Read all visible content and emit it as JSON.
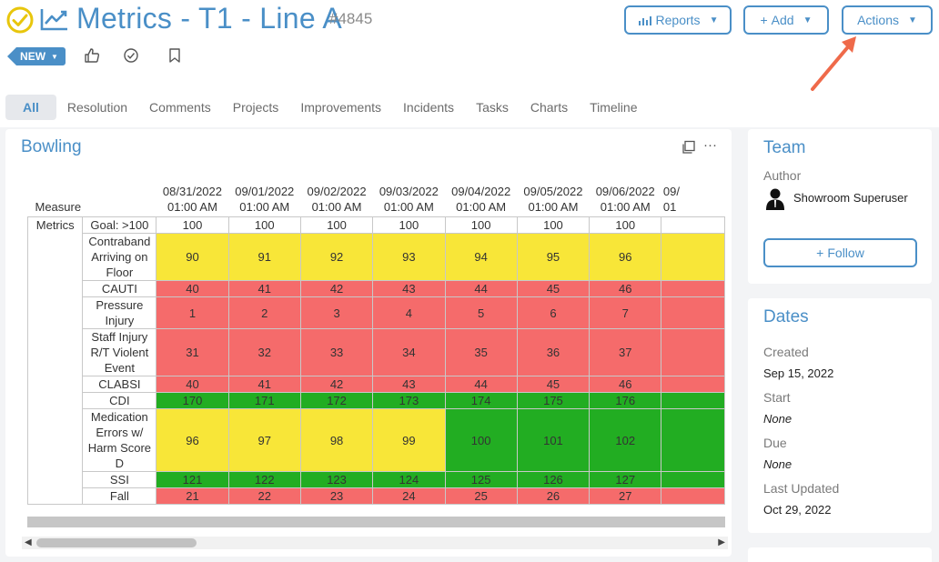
{
  "header": {
    "title": "Metrics - T1 - Line A",
    "record_id": "#4845",
    "buttons": {
      "reports": "Reports",
      "add": "Add",
      "actions": "Actions"
    },
    "status_badge": "NEW",
    "accent_color": "#4a8fc7",
    "status_color": "#e8d20c"
  },
  "tabs": [
    "All",
    "Resolution",
    "Comments",
    "Projects",
    "Improvements",
    "Incidents",
    "Tasks",
    "Charts",
    "Timeline"
  ],
  "main_card": {
    "title": "Bowling",
    "table": {
      "measure_header": "Measure",
      "dates": [
        [
          "08/31/2022",
          "01:00 AM"
        ],
        [
          "09/01/2022",
          "01:00 AM"
        ],
        [
          "09/02/2022",
          "01:00 AM"
        ],
        [
          "09/03/2022",
          "01:00 AM"
        ],
        [
          "09/04/2022",
          "01:00 AM"
        ],
        [
          "09/05/2022",
          "01:00 AM"
        ],
        [
          "09/06/2022",
          "01:00 AM"
        ],
        [
          "09/",
          "01"
        ]
      ],
      "category": "Metrics",
      "goal_row": {
        "label": "Goal: >100",
        "values": [
          "100",
          "100",
          "100",
          "100",
          "100",
          "100",
          "100",
          ""
        ]
      },
      "rows": [
        {
          "label": "Contraband Arriving on Floor",
          "values": [
            "90",
            "91",
            "92",
            "93",
            "94",
            "95",
            "96",
            ""
          ],
          "colors": [
            "y",
            "y",
            "y",
            "y",
            "y",
            "y",
            "y",
            "y"
          ]
        },
        {
          "label": "CAUTI",
          "values": [
            "40",
            "41",
            "42",
            "43",
            "44",
            "45",
            "46",
            ""
          ],
          "colors": [
            "r",
            "r",
            "r",
            "r",
            "r",
            "r",
            "r",
            "r"
          ]
        },
        {
          "label": "Pressure Injury",
          "values": [
            "1",
            "2",
            "3",
            "4",
            "5",
            "6",
            "7",
            ""
          ],
          "colors": [
            "r",
            "r",
            "r",
            "r",
            "r",
            "r",
            "r",
            "r"
          ]
        },
        {
          "label": "Staff Injury R/T Violent Event",
          "values": [
            "31",
            "32",
            "33",
            "34",
            "35",
            "36",
            "37",
            ""
          ],
          "colors": [
            "r",
            "r",
            "r",
            "r",
            "r",
            "r",
            "r",
            "r"
          ]
        },
        {
          "label": "CLABSI",
          "values": [
            "40",
            "41",
            "42",
            "43",
            "44",
            "45",
            "46",
            ""
          ],
          "colors": [
            "r",
            "r",
            "r",
            "r",
            "r",
            "r",
            "r",
            "r"
          ]
        },
        {
          "label": "CDI",
          "values": [
            "170",
            "171",
            "172",
            "173",
            "174",
            "175",
            "176",
            ""
          ],
          "colors": [
            "g",
            "g",
            "g",
            "g",
            "g",
            "g",
            "g",
            "g"
          ]
        },
        {
          "label": "Medication Errors w/ Harm Score D",
          "values": [
            "96",
            "97",
            "98",
            "99",
            "100",
            "101",
            "102",
            ""
          ],
          "colors": [
            "y",
            "y",
            "y",
            "y",
            "g",
            "g",
            "g",
            "g"
          ]
        },
        {
          "label": "SSI",
          "values": [
            "121",
            "122",
            "123",
            "124",
            "125",
            "126",
            "127",
            ""
          ],
          "colors": [
            "g",
            "g",
            "g",
            "g",
            "g",
            "g",
            "g",
            "g"
          ]
        },
        {
          "label": "Fall",
          "values": [
            "21",
            "22",
            "23",
            "24",
            "25",
            "26",
            "27",
            ""
          ],
          "colors": [
            "r",
            "r",
            "r",
            "r",
            "r",
            "r",
            "r",
            "r"
          ]
        }
      ]
    }
  },
  "team_card": {
    "title": "Team",
    "author_label": "Author",
    "author_name": "Showroom Superuser",
    "follow_label": "Follow"
  },
  "dates_card": {
    "title": "Dates",
    "created_label": "Created",
    "created_value": "Sep 15, 2022",
    "start_label": "Start",
    "start_value": "None",
    "due_label": "Due",
    "due_value": "None",
    "updated_label": "Last Updated",
    "updated_value": "Oct 29, 2022"
  },
  "icons": [
    "check-circle-icon",
    "trend-line-icon",
    "bar-chart-icon",
    "plus-icon",
    "thumbs-up-icon",
    "check-icon",
    "bookmark-icon",
    "copy-icon",
    "more-icon",
    "user-icon",
    "arrow-annotation"
  ]
}
